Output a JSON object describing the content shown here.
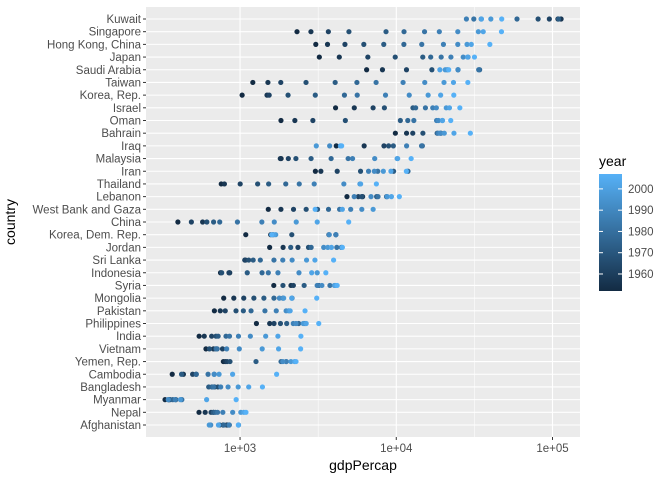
{
  "chart_data": {
    "type": "scatter",
    "title": "",
    "xlabel": "gdpPercap",
    "ylabel": "country",
    "x_scale": "log10",
    "xlim": [
      250,
      150000
    ],
    "x_ticks": [
      1000,
      10000,
      100000
    ],
    "x_tick_labels": [
      "1e+03",
      "1e+04",
      "1e+05"
    ],
    "grid": true,
    "legend": {
      "title": "year",
      "position": "right",
      "type": "colorbar",
      "range": [
        1952,
        2007
      ],
      "ticks": [
        1960,
        1970,
        1980,
        1990,
        2000
      ],
      "tick_labels": [
        "1960",
        "1970",
        "1980",
        "1990",
        "2000"
      ],
      "color_low": "#132B43",
      "color_high": "#56B1F7"
    },
    "years": [
      1952,
      1957,
      1962,
      1967,
      1972,
      1977,
      1982,
      1987,
      1992,
      1997,
      2002,
      2007
    ],
    "countries": [
      "Afghanistan",
      "Nepal",
      "Myanmar",
      "Bangladesh",
      "Cambodia",
      "Yemen, Rep.",
      "Vietnam",
      "India",
      "Philippines",
      "Pakistan",
      "Mongolia",
      "Syria",
      "Indonesia",
      "Sri Lanka",
      "Jordan",
      "Korea, Dem. Rep.",
      "China",
      "West Bank and Gaza",
      "Lebanon",
      "Thailand",
      "Iran",
      "Malaysia",
      "Iraq",
      "Bahrain",
      "Oman",
      "Israel",
      "Korea, Rep.",
      "Taiwan",
      "Saudi Arabia",
      "Japan",
      "Hong Kong, China",
      "Singapore",
      "Kuwait"
    ],
    "series": [
      {
        "country": "Afghanistan",
        "gdpPercap": [
          779,
          821,
          853,
          836,
          740,
          786,
          978,
          852,
          649,
          635,
          727,
          975
        ]
      },
      {
        "country": "Nepal",
        "gdpPercap": [
          546,
          598,
          652,
          676,
          674,
          695,
          718,
          776,
          897,
          1011,
          1057,
          1091
        ]
      },
      {
        "country": "Myanmar",
        "gdpPercap": [
          331,
          350,
          388,
          349,
          357,
          371,
          424,
          385,
          347,
          415,
          611,
          944
        ]
      },
      {
        "country": "Bangladesh",
        "gdpPercap": [
          684,
          662,
          686,
          721,
          630,
          660,
          677,
          752,
          838,
          973,
          1136,
          1391
        ]
      },
      {
        "country": "Cambodia",
        "gdpPercap": [
          368,
          434,
          497,
          523,
          422,
          525,
          624,
          684,
          682,
          734,
          896,
          1714
        ]
      },
      {
        "country": "Yemen, Rep.",
        "gdpPercap": [
          782,
          805,
          826,
          862,
          1265,
          1830,
          1978,
          1972,
          1879,
          2117,
          2235,
          2281
        ]
      },
      {
        "country": "Vietnam",
        "gdpPercap": [
          605,
          676,
          772,
          637,
          700,
          714,
          707,
          821,
          989,
          1386,
          1764,
          2442
        ]
      },
      {
        "country": "India",
        "gdpPercap": [
          547,
          590,
          658,
          701,
          724,
          813,
          856,
          977,
          1164,
          1459,
          1747,
          2452
        ]
      },
      {
        "country": "Philippines",
        "gdpPercap": [
          1273,
          1548,
          1650,
          1814,
          1989,
          2373,
          2603,
          2190,
          2280,
          2537,
          2651,
          3190
        ]
      },
      {
        "country": "Pakistan",
        "gdpPercap": [
          685,
          747,
          804,
          942,
          1050,
          1176,
          1443,
          1705,
          1972,
          2049,
          2093,
          2606
        ]
      },
      {
        "country": "Mongolia",
        "gdpPercap": [
          786,
          912,
          1056,
          1226,
          1421,
          1648,
          1881,
          2153,
          1785,
          1902,
          2141,
          3096
        ]
      },
      {
        "country": "Syria",
        "gdpPercap": [
          1644,
          2118,
          2194,
          1882,
          2572,
          3196,
          3762,
          3116,
          3341,
          4015,
          4091,
          4185
        ]
      },
      {
        "country": "Indonesia",
        "gdpPercap": [
          750,
          859,
          849,
          763,
          1112,
          1383,
          1517,
          1748,
          2383,
          3119,
          2874,
          3541
        ]
      },
      {
        "country": "Sri Lanka",
        "gdpPercap": [
          1084,
          1073,
          1074,
          1136,
          1213,
          1348,
          1648,
          1877,
          2154,
          2665,
          3015,
          3970
        ]
      },
      {
        "country": "Jordan",
        "gdpPercap": [
          1547,
          1886,
          2348,
          2742,
          2110,
          2852,
          4162,
          4448,
          3431,
          3645,
          3845,
          4519
        ]
      },
      {
        "country": "Korea, Dem. Rep.",
        "gdpPercap": [
          1088,
          1571,
          1622,
          2144,
          3702,
          4106,
          4106,
          4107,
          3726,
          1691,
          1647,
          1593
        ]
      },
      {
        "country": "China",
        "gdpPercap": [
          400,
          576,
          488,
          613,
          677,
          741,
          962,
          1379,
          1656,
          2289,
          3119,
          4959
        ]
      },
      {
        "country": "West Bank and Gaza",
        "gdpPercap": [
          1516,
          1827,
          2199,
          2650,
          3134,
          3683,
          4337,
          5108,
          6018,
          7111,
          4516,
          3026
        ]
      },
      {
        "country": "Lebanon",
        "gdpPercap": [
          4835,
          6090,
          5716,
          6006,
          7486,
          8660,
          7641,
          5378,
          6891,
          8755,
          9314,
          10461
        ]
      },
      {
        "country": "Thailand",
        "gdpPercap": [
          758,
          794,
          1002,
          1296,
          1524,
          1961,
          2393,
          2983,
          4617,
          5853,
          5914,
          7458
        ]
      },
      {
        "country": "Iran",
        "gdpPercap": [
          3035,
          3291,
          4187,
          5907,
          9614,
          11889,
          7608,
          6643,
          7235,
          8264,
          9241,
          11606
        ]
      },
      {
        "country": "Malaysia",
        "gdpPercap": [
          1831,
          1810,
          2037,
          2278,
          2849,
          3828,
          4920,
          5249,
          7277,
          10132,
          10207,
          12452
        ]
      },
      {
        "country": "Iraq",
        "gdpPercap": [
          4130,
          6229,
          8342,
          8931,
          9576,
          14688,
          14517,
          11644,
          3746,
          3076,
          4391,
          4471
        ]
      },
      {
        "country": "Bahrain",
        "gdpPercap": [
          9867,
          11636,
          12753,
          14805,
          18269,
          19340,
          19211,
          18524,
          19036,
          20292,
          23404,
          29796
        ]
      },
      {
        "country": "Oman",
        "gdpPercap": [
          1828,
          2243,
          2925,
          4721,
          10618,
          11848,
          12955,
          18115,
          18617,
          19702,
          19775,
          22316
        ]
      },
      {
        "country": "Israel",
        "gdpPercap": [
          4087,
          5386,
          7106,
          8394,
          12787,
          13306,
          15367,
          17122,
          18051,
          20897,
          21905,
          25523
        ]
      },
      {
        "country": "Korea, Rep.",
        "gdpPercap": [
          1031,
          1488,
          1536,
          2029,
          3031,
          4657,
          5623,
          8533,
          12104,
          15994,
          19234,
          23348
        ]
      },
      {
        "country": "Taiwan",
        "gdpPercap": [
          1207,
          1508,
          1823,
          2644,
          4063,
          5597,
          7427,
          11055,
          15216,
          20206,
          23235,
          28718
        ]
      },
      {
        "country": "Saudi Arabia",
        "gdpPercap": [
          6460,
          8158,
          11626,
          16903,
          24837,
          34168,
          33693,
          21199,
          24841,
          20586,
          19014,
          21655
        ]
      },
      {
        "country": "Japan",
        "gdpPercap": [
          3217,
          4318,
          6577,
          9847,
          14779,
          16610,
          19384,
          22376,
          26825,
          28817,
          28605,
          31656
        ]
      },
      {
        "country": "Hong Kong, China",
        "gdpPercap": [
          3054,
          3629,
          4693,
          6198,
          8316,
          11186,
          14561,
          20038,
          24758,
          28378,
          30209,
          39725
        ]
      },
      {
        "country": "Singapore",
        "gdpPercap": [
          2315,
          2843,
          3675,
          4977,
          8597,
          11210,
          15169,
          18862,
          24769,
          33519,
          36023,
          47143
        ]
      },
      {
        "country": "Kuwait",
        "gdpPercap": [
          108382,
          113523,
          95458,
          80895,
          109348,
          59265,
          31354,
          28118,
          34933,
          40301,
          35110,
          47307
        ]
      }
    ]
  }
}
